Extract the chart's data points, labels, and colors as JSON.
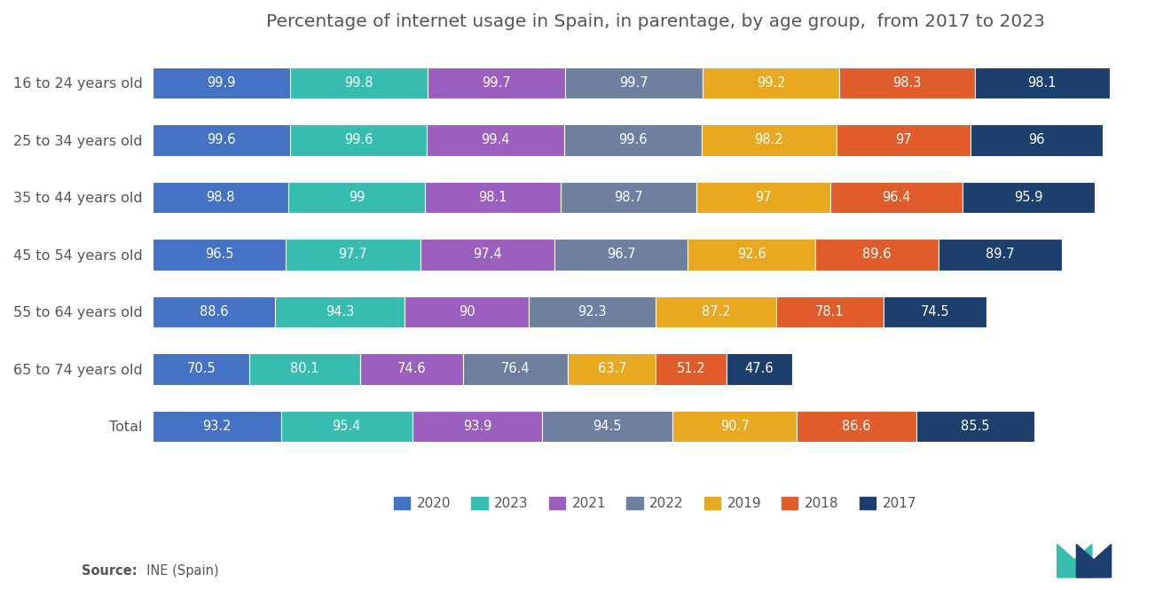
{
  "title": "Percentage of internet usage in Spain, in parentage, by age group,  from 2017 to 2023",
  "categories": [
    "16 to 24 years old",
    "25 to 34 years old",
    "35 to 44 years old",
    "45 to 54 years old",
    "55 to 64 years old",
    "65 to 74 years old",
    "Total"
  ],
  "years": [
    "2020",
    "2023",
    "2021",
    "2022",
    "2019",
    "2018",
    "2017"
  ],
  "colors": {
    "2020": "#4472C4",
    "2023": "#36BDB0",
    "2021": "#9B5FC0",
    "2022": "#6E7FA0",
    "2019": "#E8A820",
    "2018": "#E05C2A",
    "2017": "#1C3F6E"
  },
  "data": {
    "16 to 24 years old": {
      "2020": 99.9,
      "2023": 99.8,
      "2021": 99.7,
      "2022": 99.7,
      "2019": 99.2,
      "2018": 98.3,
      "2017": 98.1
    },
    "25 to 34 years old": {
      "2020": 99.6,
      "2023": 99.6,
      "2021": 99.4,
      "2022": 99.6,
      "2019": 98.2,
      "2018": 97.0,
      "2017": 96.0
    },
    "35 to 44 years old": {
      "2020": 98.8,
      "2023": 99.0,
      "2021": 98.1,
      "2022": 98.7,
      "2019": 97.0,
      "2018": 96.4,
      "2017": 95.9
    },
    "45 to 54 years old": {
      "2020": 96.5,
      "2023": 97.7,
      "2021": 97.4,
      "2022": 96.7,
      "2019": 92.6,
      "2018": 89.6,
      "2017": 89.7
    },
    "55 to 64 years old": {
      "2020": 88.6,
      "2023": 94.3,
      "2021": 90.0,
      "2022": 92.3,
      "2019": 87.2,
      "2018": 78.1,
      "2017": 74.5
    },
    "65 to 74 years old": {
      "2020": 70.5,
      "2023": 80.1,
      "2021": 74.6,
      "2022": 76.4,
      "2019": 63.7,
      "2018": 51.2,
      "2017": 47.6
    },
    "Total": {
      "2020": 93.2,
      "2023": 95.4,
      "2021": 93.9,
      "2022": 94.5,
      "2019": 90.7,
      "2018": 86.6,
      "2017": 85.5
    }
  },
  "source_bold": "Source:",
  "source_rest": "  INE (Spain)",
  "background_color": "#FFFFFF",
  "bar_height": 0.55,
  "title_fontsize": 14.5,
  "label_fontsize": 10.5,
  "tick_fontsize": 11.5
}
